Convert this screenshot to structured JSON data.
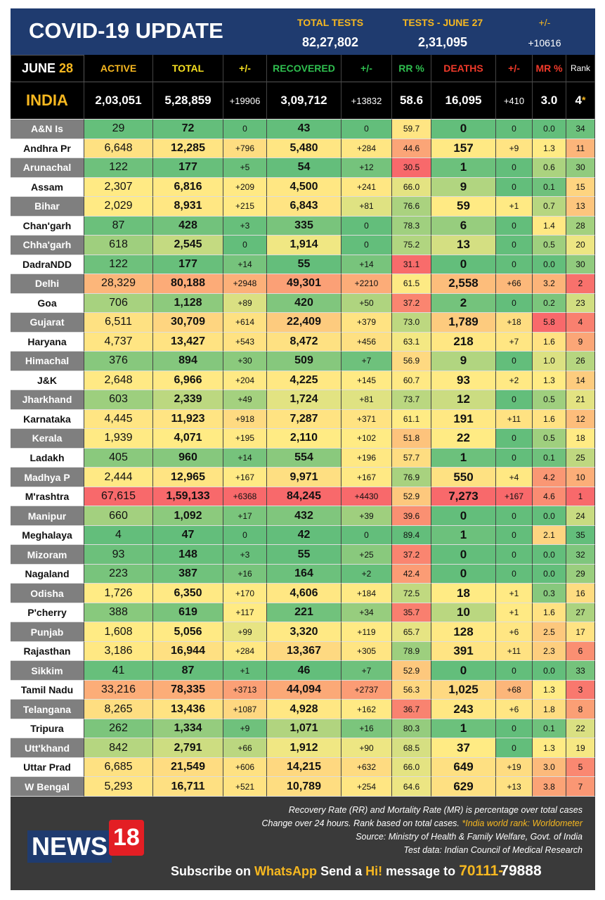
{
  "header": {
    "title": "COVID-19 UPDATE",
    "tests": [
      {
        "label": "TOTAL TESTS",
        "value": "82,27,802"
      },
      {
        "label": "TESTS - JUNE 27",
        "value": "2,31,095"
      },
      {
        "label": "+/-",
        "value": "+10616"
      }
    ]
  },
  "columns": {
    "month": "JUNE",
    "day": "28",
    "names": [
      "ACTIVE",
      "TOTAL",
      "+/-",
      "RECOVERED",
      "+/-",
      "RR %",
      "DEATHS",
      "+/-",
      "MR %",
      "Rank"
    ]
  },
  "india": {
    "name": "INDIA",
    "cells": [
      "2,03,051",
      "5,28,859",
      "+19906",
      "3,09,712",
      "+13832",
      "58.6",
      "16,095",
      "+410",
      "3.0",
      "4"
    ],
    "rank_mark": "*"
  },
  "rows": [
    [
      "A&N Is",
      "29",
      "72",
      "0",
      "43",
      "0",
      "59.7",
      "0",
      "0",
      "0.0",
      "34"
    ],
    [
      "Andhra Pr",
      "6,648",
      "12,285",
      "+796",
      "5,480",
      "+284",
      "44.6",
      "157",
      "+9",
      "1.3",
      "11"
    ],
    [
      "Arunachal",
      "122",
      "177",
      "+5",
      "54",
      "+12",
      "30.5",
      "1",
      "0",
      "0.6",
      "30"
    ],
    [
      "Assam",
      "2,307",
      "6,816",
      "+209",
      "4,500",
      "+241",
      "66.0",
      "9",
      "0",
      "0.1",
      "15"
    ],
    [
      "Bihar",
      "2,029",
      "8,931",
      "+215",
      "6,843",
      "+81",
      "76.6",
      "59",
      "+1",
      "0.7",
      "13"
    ],
    [
      "Chan'garh",
      "87",
      "428",
      "+3",
      "335",
      "0",
      "78.3",
      "6",
      "0",
      "1.4",
      "28"
    ],
    [
      "Chha'garh",
      "618",
      "2,545",
      "0",
      "1,914",
      "0",
      "75.2",
      "13",
      "0",
      "0.5",
      "20"
    ],
    [
      "DadraNDD",
      "122",
      "177",
      "+14",
      "55",
      "+14",
      "31.1",
      "0",
      "0",
      "0.0",
      "30"
    ],
    [
      "Delhi",
      "28,329",
      "80,188",
      "+2948",
      "49,301",
      "+2210",
      "61.5",
      "2,558",
      "+66",
      "3.2",
      "2"
    ],
    [
      "Goa",
      "706",
      "1,128",
      "+89",
      "420",
      "+50",
      "37.2",
      "2",
      "0",
      "0.2",
      "23"
    ],
    [
      "Gujarat",
      "6,511",
      "30,709",
      "+614",
      "22,409",
      "+379",
      "73.0",
      "1,789",
      "+18",
      "5.8",
      "4"
    ],
    [
      "Haryana",
      "4,737",
      "13,427",
      "+543",
      "8,472",
      "+456",
      "63.1",
      "218",
      "+7",
      "1.6",
      "9"
    ],
    [
      "Himachal",
      "376",
      "894",
      "+30",
      "509",
      "+7",
      "56.9",
      "9",
      "0",
      "1.0",
      "26"
    ],
    [
      "J&K",
      "2,648",
      "6,966",
      "+204",
      "4,225",
      "+145",
      "60.7",
      "93",
      "+2",
      "1.3",
      "14"
    ],
    [
      "Jharkhand",
      "603",
      "2,339",
      "+49",
      "1,724",
      "+81",
      "73.7",
      "12",
      "0",
      "0.5",
      "21"
    ],
    [
      "Karnataka",
      "4,445",
      "11,923",
      "+918",
      "7,287",
      "+371",
      "61.1",
      "191",
      "+11",
      "1.6",
      "12"
    ],
    [
      "Kerala",
      "1,939",
      "4,071",
      "+195",
      "2,110",
      "+102",
      "51.8",
      "22",
      "0",
      "0.5",
      "18"
    ],
    [
      "Ladakh",
      "405",
      "960",
      "+14",
      "554",
      "+196",
      "57.7",
      "1",
      "0",
      "0.1",
      "25"
    ],
    [
      "Madhya P",
      "2,444",
      "12,965",
      "+167",
      "9,971",
      "+167",
      "76.9",
      "550",
      "+4",
      "4.2",
      "10"
    ],
    [
      "M'rashtra",
      "67,615",
      "1,59,133",
      "+6368",
      "84,245",
      "+4430",
      "52.9",
      "7,273",
      "+167",
      "4.6",
      "1"
    ],
    [
      "Manipur",
      "660",
      "1,092",
      "+17",
      "432",
      "+39",
      "39.6",
      "0",
      "0",
      "0.0",
      "24"
    ],
    [
      "Meghalaya",
      "4",
      "47",
      "0",
      "42",
      "0",
      "89.4",
      "1",
      "0",
      "2.1",
      "35"
    ],
    [
      "Mizoram",
      "93",
      "148",
      "+3",
      "55",
      "+25",
      "37.2",
      "0",
      "0",
      "0.0",
      "32"
    ],
    [
      "Nagaland",
      "223",
      "387",
      "+16",
      "164",
      "+2",
      "42.4",
      "0",
      "0",
      "0.0",
      "29"
    ],
    [
      "Odisha",
      "1,726",
      "6,350",
      "+170",
      "4,606",
      "+184",
      "72.5",
      "18",
      "+1",
      "0.3",
      "16"
    ],
    [
      "P'cherry",
      "388",
      "619",
      "+117",
      "221",
      "+34",
      "35.7",
      "10",
      "+1",
      "1.6",
      "27"
    ],
    [
      "Punjab",
      "1,608",
      "5,056",
      "+99",
      "3,320",
      "+119",
      "65.7",
      "128",
      "+6",
      "2.5",
      "17"
    ],
    [
      "Rajasthan",
      "3,186",
      "16,944",
      "+284",
      "13,367",
      "+305",
      "78.9",
      "391",
      "+11",
      "2.3",
      "6"
    ],
    [
      "Sikkim",
      "41",
      "87",
      "+1",
      "46",
      "+7",
      "52.9",
      "0",
      "0",
      "0.0",
      "33"
    ],
    [
      "Tamil Nadu",
      "33,216",
      "78,335",
      "+3713",
      "44,094",
      "+2737",
      "56.3",
      "1,025",
      "+68",
      "1.3",
      "3"
    ],
    [
      "Telangana",
      "8,265",
      "13,436",
      "+1087",
      "4,928",
      "+162",
      "36.7",
      "243",
      "+6",
      "1.8",
      "8"
    ],
    [
      "Tripura",
      "262",
      "1,334",
      "+9",
      "1,071",
      "+16",
      "80.3",
      "1",
      "0",
      "0.1",
      "22"
    ],
    [
      "Utt'khand",
      "842",
      "2,791",
      "+66",
      "1,912",
      "+90",
      "68.5",
      "37",
      "0",
      "1.3",
      "19"
    ],
    [
      "Uttar Prad",
      "6,685",
      "21,549",
      "+606",
      "14,215",
      "+632",
      "66.0",
      "649",
      "+19",
      "3.0",
      "5"
    ],
    [
      "W Bengal",
      "5,293",
      "16,711",
      "+521",
      "10,789",
      "+254",
      "64.6",
      "629",
      "+13",
      "3.8",
      "7"
    ]
  ],
  "footer": {
    "notes": [
      "Recovery Rate (RR) and Mortality Rate (MR) is percentage over total cases",
      "Change over 24 hours. Rank based on total cases.",
      "*India world rank: Worldometer",
      "Source: Ministry of Health & Family Welfare, Govt. of India",
      "Test data: Indian Council of Medical Research"
    ],
    "logo": [
      "NEWS",
      "18"
    ],
    "subscribe": [
      "Subscribe on",
      "WhatsApp",
      "Send a",
      "Hi!",
      "message to",
      "70111-",
      "79888"
    ]
  }
}
